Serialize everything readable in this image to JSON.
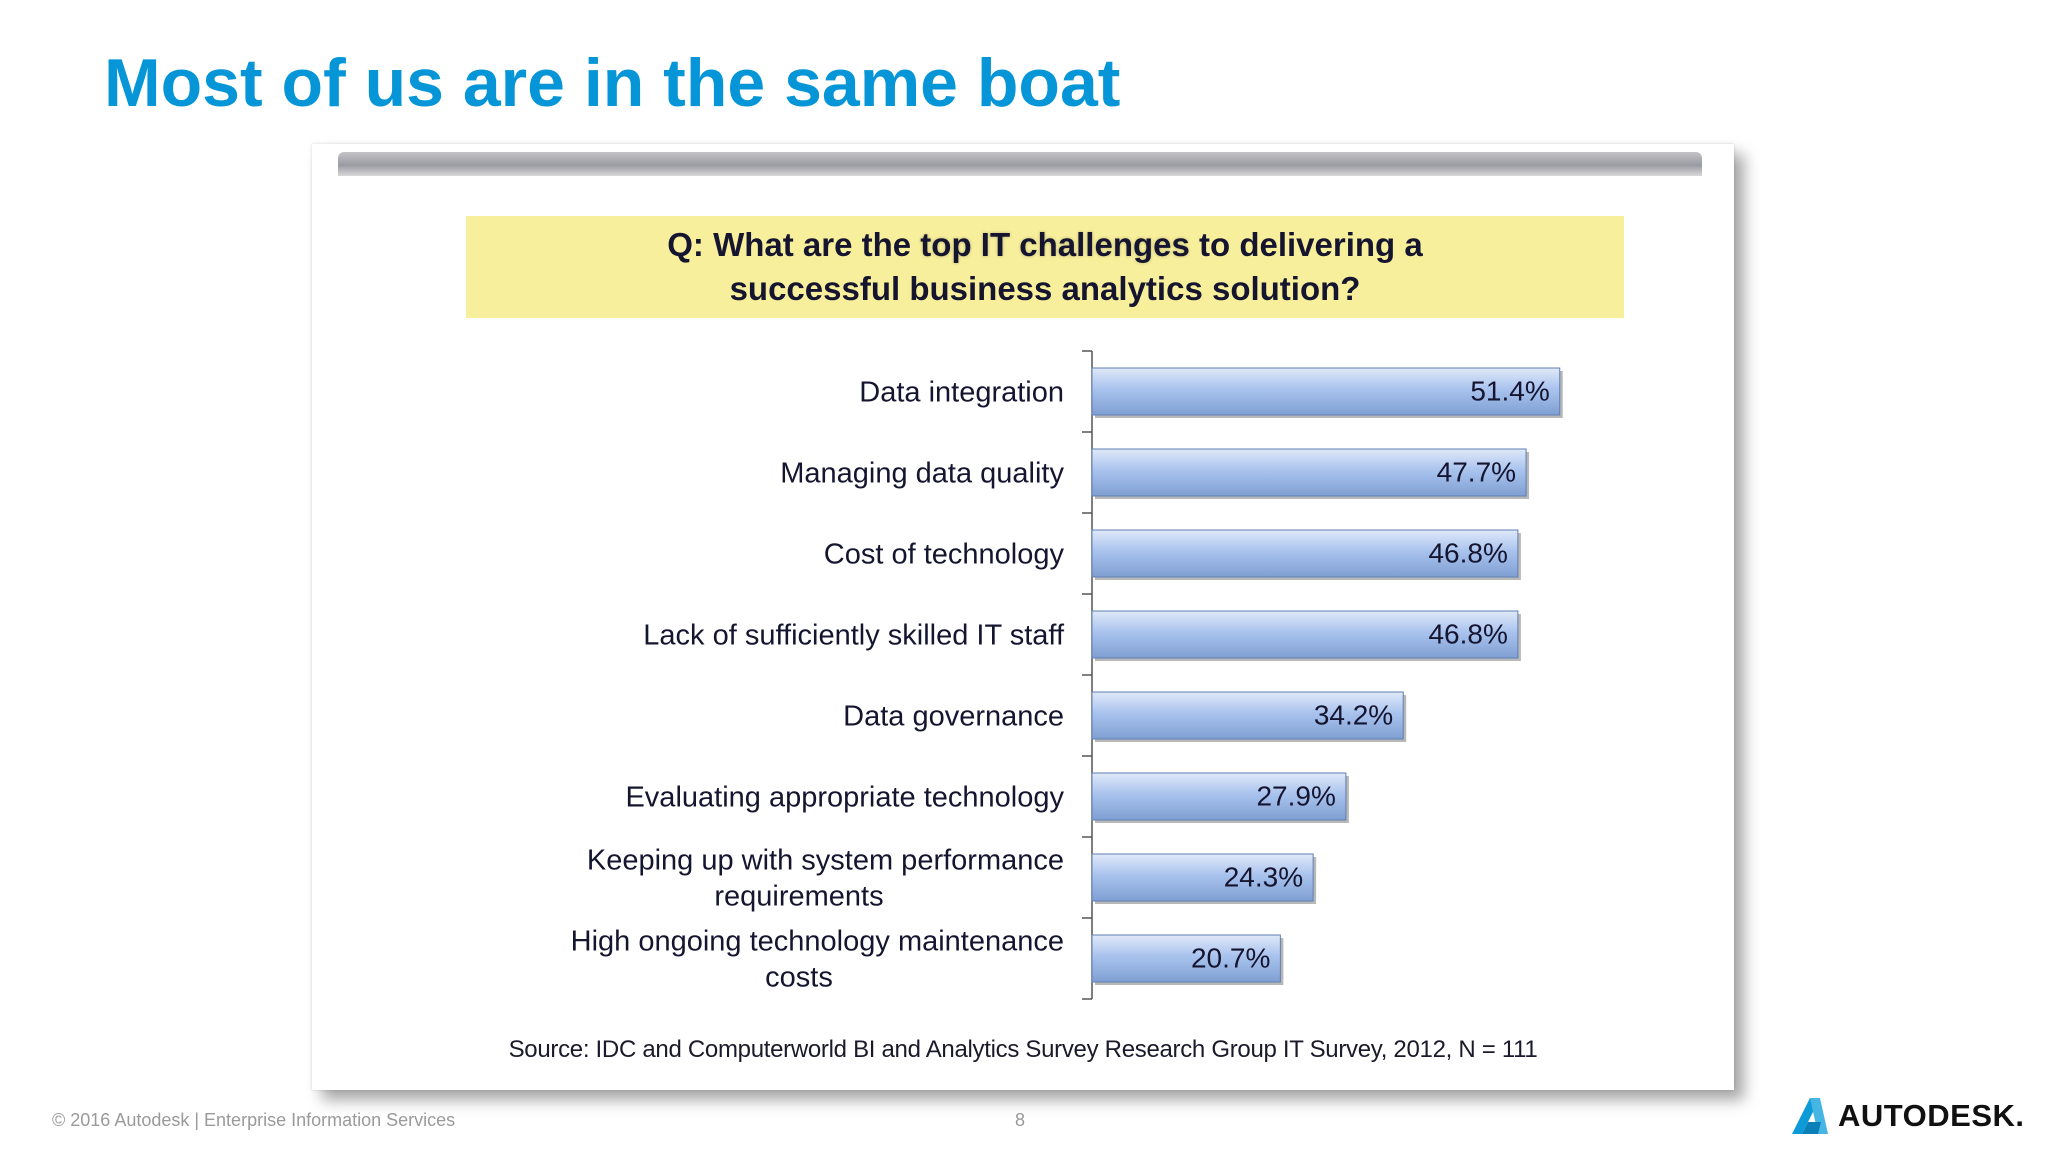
{
  "slide": {
    "title": "Most of us are in the same boat"
  },
  "question": {
    "prefix": "Q:  What are the ",
    "highlight": "top IT challenges",
    "suffix_line1": " to delivering a",
    "line2": "successful business analytics solution?"
  },
  "chart_data": {
    "type": "bar",
    "orientation": "horizontal",
    "title": "Q:  What are the top IT challenges to delivering a successful business analytics solution?",
    "categories": [
      "Data integration",
      "Managing data quality",
      "Cost of technology",
      "Lack of sufficiently skilled IT staff",
      "Data governance",
      "Evaluating appropriate technology",
      "Keeping up with system performance requirements",
      "High ongoing technology maintenance costs"
    ],
    "category_lines": [
      [
        "Data integration"
      ],
      [
        "Managing data quality"
      ],
      [
        "Cost of technology"
      ],
      [
        "Lack of sufficiently skilled IT staff"
      ],
      [
        "Data governance"
      ],
      [
        "Evaluating appropriate technology"
      ],
      [
        "Keeping up with system performance",
        "requirements"
      ],
      [
        "High ongoing technology maintenance",
        "costs"
      ]
    ],
    "values": [
      51.4,
      47.7,
      46.8,
      46.8,
      34.2,
      27.9,
      24.3,
      20.7
    ],
    "value_labels": [
      "51.4%",
      "47.7%",
      "46.8%",
      "46.8%",
      "34.2%",
      "27.9%",
      "24.3%",
      "20.7%"
    ],
    "xlabel": "",
    "ylabel": "",
    "xlim": [
      0,
      100
    ],
    "grid": false,
    "legend": "none",
    "colors": {
      "bar_light": "#dfe9f8",
      "bar_mid": "#a9c3ee",
      "bar_dark": "#7f9fd2",
      "bar_edge": "#5f7fb3",
      "text": "#151530"
    }
  },
  "source": "Source: IDC and Computerworld BI and Analytics Survey Research Group IT Survey, 2012, N = 111",
  "footer": {
    "copyright": "© 2016 Autodesk | Enterprise Information Services",
    "page": "8"
  },
  "logo": {
    "text": "AUTODESK.",
    "icon": "autodesk-a-icon"
  },
  "colors": {
    "title": "#0696d7",
    "question_bg": "#f8ef9c",
    "footer_text": "#9a9a9a"
  }
}
